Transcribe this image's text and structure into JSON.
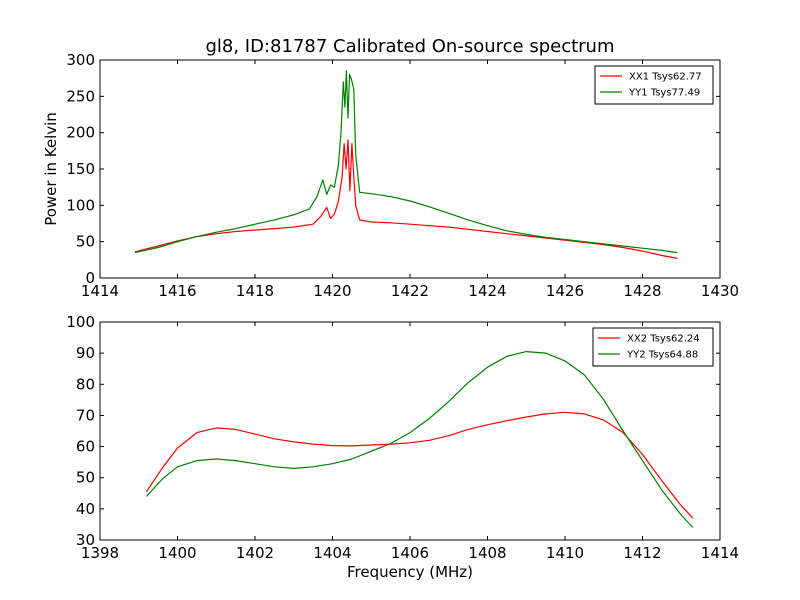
{
  "chart_data": [
    {
      "type": "line",
      "title": "gl8, ID:81787 Calibrated On-source spectrum",
      "xlabel": "",
      "ylabel": "Power in Kelvin",
      "xlim": [
        1414,
        1430
      ],
      "ylim": [
        0,
        300
      ],
      "xticks": [
        "1414",
        "1416",
        "1418",
        "1420",
        "1422",
        "1424",
        "1426",
        "1428",
        "1430"
      ],
      "yticks": [
        "0",
        "50",
        "100",
        "150",
        "200",
        "250",
        "300"
      ],
      "legend_position": "top-right",
      "grid": false,
      "series": [
        {
          "name": "XX1 Tsys62.77",
          "color": "#ff0000",
          "x": [
            1414.9,
            1415.5,
            1416.0,
            1416.5,
            1417.0,
            1417.5,
            1418.0,
            1418.5,
            1419.0,
            1419.5,
            1419.7,
            1419.85,
            1419.95,
            1420.05,
            1420.15,
            1420.25,
            1420.3,
            1420.35,
            1420.4,
            1420.45,
            1420.5,
            1420.55,
            1420.6,
            1420.7,
            1421.0,
            1421.5,
            1422.0,
            1422.5,
            1423.0,
            1423.5,
            1424.0,
            1424.5,
            1425.0,
            1425.5,
            1426.0,
            1426.5,
            1427.0,
            1427.5,
            1428.0,
            1428.5,
            1428.9
          ],
          "y": [
            36,
            44,
            51,
            57,
            61,
            64,
            66,
            68,
            70,
            74,
            85,
            97,
            82,
            88,
            105,
            140,
            185,
            150,
            190,
            120,
            185,
            140,
            100,
            80,
            77,
            76,
            74,
            72,
            70,
            67,
            64,
            61,
            58,
            55,
            52,
            49,
            46,
            42,
            37,
            31,
            27
          ]
        },
        {
          "name": "YY1 Tsys77.49",
          "color": "#008000",
          "x": [
            1414.9,
            1415.5,
            1416.0,
            1416.5,
            1417.0,
            1417.5,
            1418.0,
            1418.5,
            1419.0,
            1419.4,
            1419.6,
            1419.75,
            1419.85,
            1419.95,
            1420.05,
            1420.15,
            1420.22,
            1420.28,
            1420.32,
            1420.36,
            1420.4,
            1420.44,
            1420.48,
            1420.55,
            1420.6,
            1420.7,
            1421.0,
            1421.5,
            1422.0,
            1422.5,
            1423.0,
            1423.5,
            1424.0,
            1424.5,
            1425.0,
            1425.5,
            1426.0,
            1426.5,
            1427.0,
            1427.5,
            1428.0,
            1428.5,
            1428.9
          ],
          "y": [
            35,
            42,
            50,
            57,
            63,
            68,
            74,
            80,
            87,
            95,
            112,
            135,
            115,
            128,
            125,
            155,
            200,
            270,
            235,
            285,
            220,
            280,
            275,
            260,
            170,
            118,
            116,
            112,
            106,
            98,
            89,
            80,
            72,
            65,
            60,
            56,
            53,
            50,
            47,
            44,
            41,
            38,
            35
          ]
        }
      ]
    },
    {
      "type": "line",
      "title": "",
      "xlabel": "Frequency (MHz)",
      "ylabel": "",
      "xlim": [
        1398,
        1414
      ],
      "ylim": [
        30,
        100
      ],
      "xticks": [
        "1398",
        "1400",
        "1402",
        "1404",
        "1406",
        "1408",
        "1410",
        "1412",
        "1414"
      ],
      "yticks": [
        "30",
        "40",
        "50",
        "60",
        "70",
        "80",
        "90",
        "100"
      ],
      "legend_position": "top-right",
      "grid": false,
      "series": [
        {
          "name": "XX2 Tsys62.24",
          "color": "#ff0000",
          "x": [
            1399.2,
            1399.6,
            1400.0,
            1400.5,
            1401.0,
            1401.5,
            1402.0,
            1402.5,
            1403.0,
            1403.5,
            1404.0,
            1404.5,
            1405.0,
            1405.5,
            1406.0,
            1406.5,
            1407.0,
            1407.5,
            1408.0,
            1408.5,
            1409.0,
            1409.5,
            1410.0,
            1410.5,
            1411.0,
            1411.5,
            1412.0,
            1412.5,
            1413.0,
            1413.3
          ],
          "y": [
            45.5,
            53,
            59.5,
            64.5,
            66,
            65.5,
            64,
            62.5,
            61.5,
            60.8,
            60.3,
            60.2,
            60.5,
            60.8,
            61.2,
            62,
            63.5,
            65.5,
            67,
            68.3,
            69.5,
            70.5,
            71,
            70.5,
            68.5,
            64.5,
            57.5,
            49,
            41,
            37
          ]
        },
        {
          "name": "YY2 Tsys64.88",
          "color": "#008000",
          "x": [
            1399.2,
            1399.6,
            1400.0,
            1400.5,
            1401.0,
            1401.5,
            1402.0,
            1402.5,
            1403.0,
            1403.5,
            1404.0,
            1404.5,
            1405.0,
            1405.5,
            1406.0,
            1406.5,
            1407.0,
            1407.5,
            1408.0,
            1408.5,
            1409.0,
            1409.5,
            1410.0,
            1410.5,
            1411.0,
            1411.5,
            1412.0,
            1412.5,
            1413.0,
            1413.3
          ],
          "y": [
            44,
            49.5,
            53.5,
            55.5,
            56,
            55.5,
            54.5,
            53.5,
            53,
            53.5,
            54.5,
            56,
            58.5,
            61,
            64.5,
            69,
            74.5,
            80.5,
            85.5,
            89,
            90.5,
            90,
            87.5,
            83,
            75,
            65,
            55.5,
            46,
            38,
            34
          ]
        }
      ]
    }
  ]
}
